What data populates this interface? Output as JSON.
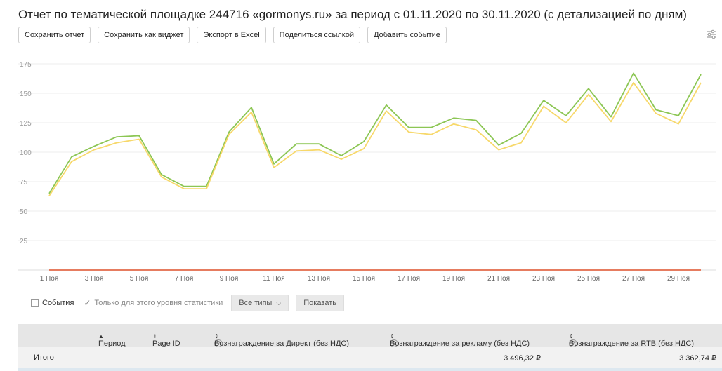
{
  "header": {
    "title": "Отчет по тематической площадке 244716 «gormonys.ru» за период с 01.11.2020 по 30.11.2020 (с детализацией по дням)"
  },
  "toolbar": {
    "buttons": [
      "Сохранить отчет",
      "Сохранить как виджет",
      "Экспорт в Excel",
      "Поделиться ссылкой",
      "Добавить событие"
    ]
  },
  "icons": {
    "settings": "sliders-icon",
    "sort": "sort-arrow-icon",
    "help": "question-circle-icon",
    "chevron": "chevron-down-icon"
  },
  "colors": {
    "green": "#8cc654",
    "yellow": "#f7d86a",
    "red": "#e36a4a",
    "grid": "#ececec"
  },
  "chart_data": {
    "type": "line",
    "x": [
      "1 Ноя",
      "2 Ноя",
      "3 Ноя",
      "4 Ноя",
      "5 Ноя",
      "6 Ноя",
      "7 Ноя",
      "8 Ноя",
      "9 Ноя",
      "10 Ноя",
      "11 Ноя",
      "12 Ноя",
      "13 Ноя",
      "14 Ноя",
      "15 Ноя",
      "16 Ноя",
      "17 Ноя",
      "18 Ноя",
      "19 Ноя",
      "20 Ноя",
      "21 Ноя",
      "22 Ноя",
      "23 Ноя",
      "24 Ноя",
      "25 Ноя",
      "26 Ноя",
      "27 Ноя",
      "28 Ноя",
      "29 Ноя",
      "30 Ноя"
    ],
    "tick_labels": [
      "1 Ноя",
      "3 Ноя",
      "5 Ноя",
      "7 Ноя",
      "9 Ноя",
      "11 Ноя",
      "13 Ноя",
      "15 Ноя",
      "17 Ноя",
      "19 Ноя",
      "21 Ноя",
      "23 Ноя",
      "25 Ноя",
      "27 Ноя",
      "29 Ноя"
    ],
    "yticks": [
      25,
      50,
      75,
      100,
      125,
      150,
      175
    ],
    "ylim": [
      0,
      175
    ],
    "grid": true,
    "series": [
      {
        "color": "#8cc654",
        "values": [
          65,
          96,
          105,
          113,
          114,
          81,
          71,
          71,
          117,
          138,
          90,
          107,
          107,
          97,
          109,
          140,
          121,
          121,
          129,
          127,
          106,
          116,
          144,
          131,
          154,
          130,
          167,
          136,
          131,
          166
        ]
      },
      {
        "color": "#f7d86a",
        "values": [
          63,
          92,
          102,
          108,
          111,
          79,
          69,
          69,
          115,
          134,
          87,
          101,
          102,
          94,
          103,
          135,
          117,
          115,
          124,
          119,
          102,
          108,
          139,
          125,
          149,
          126,
          159,
          133,
          124,
          159
        ]
      },
      {
        "color": "#e36a4a",
        "values": [
          0,
          0,
          0,
          0,
          0,
          0,
          0,
          0,
          0,
          0,
          0,
          0,
          0,
          0,
          0,
          0,
          0,
          0,
          0,
          0,
          0,
          0,
          0,
          0,
          0,
          0,
          0,
          0,
          0,
          0
        ]
      }
    ]
  },
  "filters": {
    "events_label": "События",
    "level_label": "Только для этого уровня статистики",
    "types_label": "Все типы",
    "show_label": "Показать"
  },
  "table": {
    "columns": [
      "Период",
      "Page ID",
      "Вознаграждение за Директ (без НДС)",
      "Вознаграждение за рекламу (без НДС)",
      "Вознаграждение за RTB (без НДС)"
    ],
    "total": {
      "label": "Итого",
      "ad_reward": "3 496,32 ₽",
      "rtb_reward": "3 362,74 ₽"
    }
  }
}
